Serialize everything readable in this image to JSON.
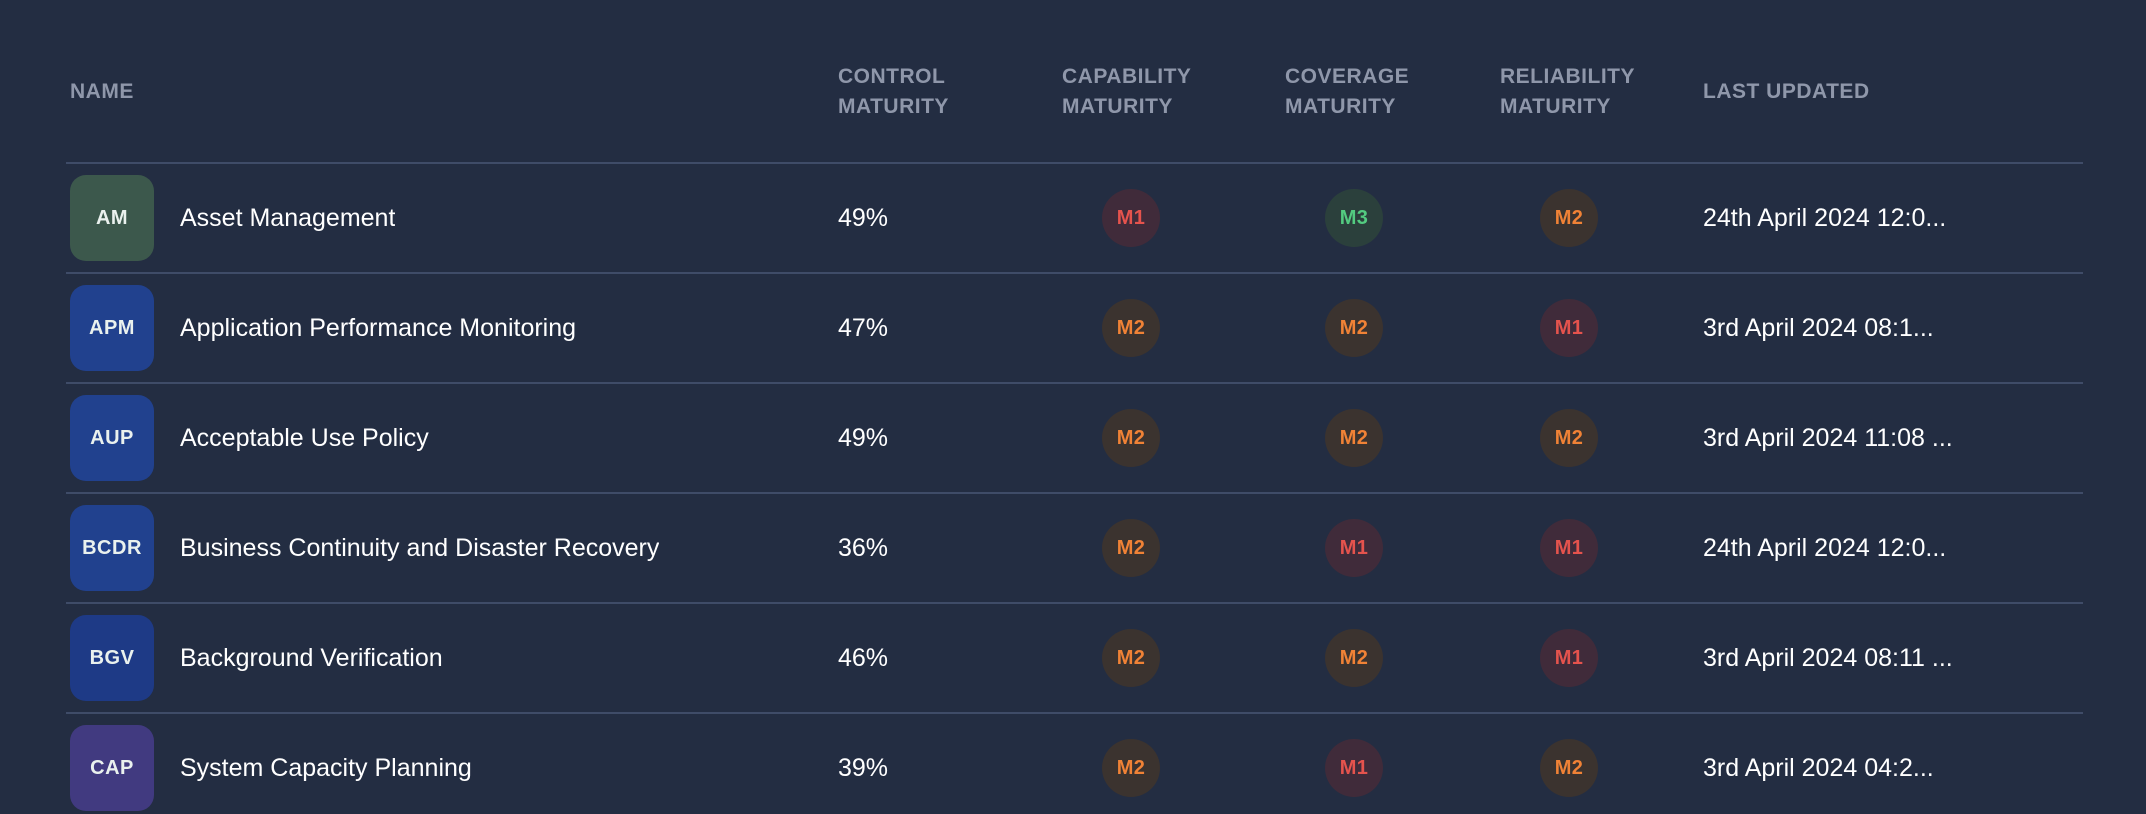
{
  "colors": {
    "background": "#232d42",
    "separator": "#3f4c68",
    "header_text": "#8f97aa",
    "primary_text": "#ffffff"
  },
  "maturity_levels": {
    "M1": {
      "text": "#e5534d",
      "bg": "#402b3a"
    },
    "M2": {
      "text": "#f08236",
      "bg": "#3b332f"
    },
    "M3": {
      "text": "#53cb80",
      "bg": "#2b403c"
    }
  },
  "table": {
    "columns": [
      {
        "key": "name",
        "label": "NAME"
      },
      {
        "key": "control_maturity",
        "label": "CONTROL MATURITY"
      },
      {
        "key": "capability_maturity",
        "label": "CAPABILITY MATURITY"
      },
      {
        "key": "coverage_maturity",
        "label": "COVERAGE MATURITY"
      },
      {
        "key": "reliability_maturity",
        "label": "RELIABILITY MATURITY"
      },
      {
        "key": "last_updated",
        "label": "LAST UPDATED"
      }
    ],
    "rows": [
      {
        "abbr": "AM",
        "abbr_bg": "#3c584c",
        "name": "Asset Management",
        "control_maturity": "49%",
        "capability": "M1",
        "coverage": "M3",
        "reliability": "M2",
        "last_updated": "24th April 2024 12:0..."
      },
      {
        "abbr": "APM",
        "abbr_bg": "#21418e",
        "name": "Application Performance Monitoring",
        "control_maturity": "47%",
        "capability": "M2",
        "coverage": "M2",
        "reliability": "M1",
        "last_updated": "3rd April 2024 08:1..."
      },
      {
        "abbr": "AUP",
        "abbr_bg": "#21418e",
        "name": "Acceptable Use Policy",
        "control_maturity": "49%",
        "capability": "M2",
        "coverage": "M2",
        "reliability": "M2",
        "last_updated": "3rd April 2024 11:08 ..."
      },
      {
        "abbr": "BCDR",
        "abbr_bg": "#21418e",
        "name": "Business Continuity and Disaster Recovery",
        "control_maturity": "36%",
        "capability": "M2",
        "coverage": "M1",
        "reliability": "M1",
        "last_updated": "24th April 2024 12:0..."
      },
      {
        "abbr": "BGV",
        "abbr_bg": "#1e3a86",
        "name": "Background Verification",
        "control_maturity": "46%",
        "capability": "M2",
        "coverage": "M2",
        "reliability": "M1",
        "last_updated": "3rd April 2024 08:11 ..."
      },
      {
        "abbr": "CAP",
        "abbr_bg": "#413a80",
        "name": "System Capacity Planning",
        "control_maturity": "39%",
        "capability": "M2",
        "coverage": "M1",
        "reliability": "M2",
        "last_updated": "3rd April 2024 04:2..."
      }
    ]
  }
}
